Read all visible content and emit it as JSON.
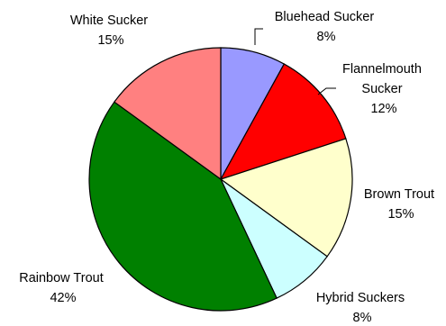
{
  "chart_data": {
    "type": "pie",
    "start_angle_deg": 0,
    "direction": "clockwise",
    "slices": [
      {
        "name": "Bluehead Sucker",
        "label_lines": [
          "Bluehead Sucker",
          "8%"
        ],
        "value": 8,
        "color": "#9999FF"
      },
      {
        "name": "Flannelmouth Sucker",
        "label_lines": [
          "Flannelmouth",
          "Sucker",
          "12%"
        ],
        "value": 12,
        "color": "#FF0000"
      },
      {
        "name": "Brown Trout",
        "label_lines": [
          "Brown Trout",
          "15%"
        ],
        "value": 15,
        "color": "#FFFFCC"
      },
      {
        "name": "Hybrid Suckers",
        "label_lines": [
          "Hybrid Suckers",
          "8%"
        ],
        "value": 8,
        "color": "#CCFFFF"
      },
      {
        "name": "Rainbow Trout",
        "label_lines": [
          "Rainbow Trout",
          "42%"
        ],
        "value": 42,
        "color": "#008000"
      },
      {
        "name": "White Sucker",
        "label_lines": [
          "White Sucker",
          "15%"
        ],
        "value": 15,
        "color": "#FF8080"
      }
    ]
  }
}
